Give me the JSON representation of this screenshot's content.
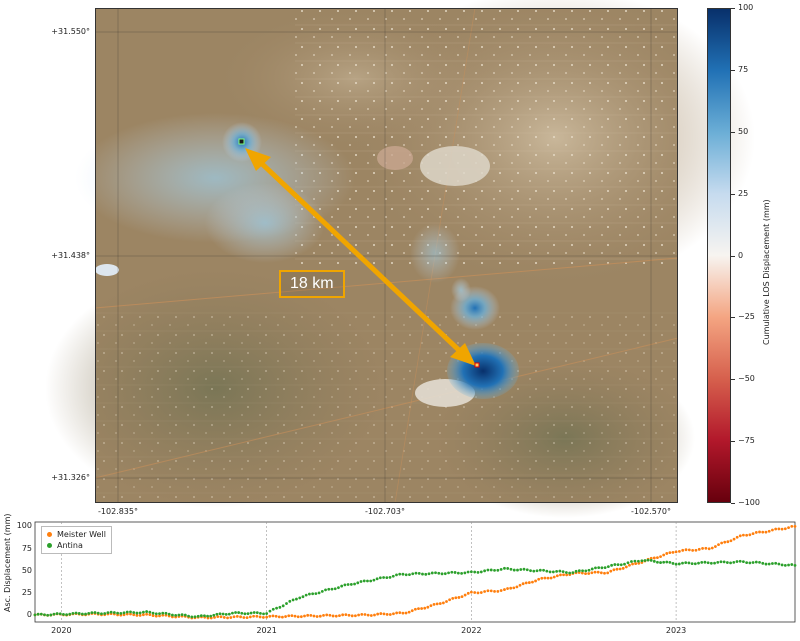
{
  "map": {
    "lat_labels": [
      "+31.550°",
      "+31.438°",
      "+31.326°"
    ],
    "lon_labels": [
      "-102.835°",
      "-102.703°",
      "-102.570°"
    ],
    "distance_label": "18 km",
    "arrow_color": "#f0a500"
  },
  "colorbar": {
    "label": "Cumulative LOS Displacement (mm)",
    "ticks": [
      "100",
      "75",
      "50",
      "25",
      "0",
      "−25",
      "−50",
      "−75",
      "−100"
    ],
    "colors": [
      "#08306b",
      "#2171b5",
      "#6baed6",
      "#c6dbef",
      "#f7f4f0",
      "#f4a582",
      "#d6604d",
      "#b2182b",
      "#67000d"
    ]
  },
  "chart_data": {
    "type": "scatter",
    "title": "",
    "xlabel": "",
    "ylabel": "Asc. Displacement (mm)",
    "ylim": [
      -8,
      105
    ],
    "y_ticks": [
      "100",
      "75",
      "50",
      "25",
      "0"
    ],
    "x_ticks": [
      "2020",
      "2021",
      "2022",
      "2023"
    ],
    "xlim": [
      "2019-11-15",
      "2023-08-01"
    ],
    "grid": true,
    "legend_placement": "top-left",
    "series": [
      {
        "name": "Meister Well",
        "color": "#ff7f0e",
        "points": [
          [
            "2019-11-15",
            0
          ],
          [
            "2020-03-01",
            1
          ],
          [
            "2020-06-01",
            0
          ],
          [
            "2020-09-01",
            -3
          ],
          [
            "2021-01-01",
            -2
          ],
          [
            "2021-04-01",
            -1
          ],
          [
            "2021-07-01",
            0
          ],
          [
            "2021-09-01",
            2
          ],
          [
            "2021-11-01",
            12
          ],
          [
            "2022-01-01",
            25
          ],
          [
            "2022-03-01",
            28
          ],
          [
            "2022-05-01",
            40
          ],
          [
            "2022-07-01",
            47
          ],
          [
            "2022-09-01",
            48
          ],
          [
            "2022-11-01",
            60
          ],
          [
            "2023-01-01",
            72
          ],
          [
            "2023-03-01",
            75
          ],
          [
            "2023-05-01",
            90
          ],
          [
            "2023-08-01",
            100
          ]
        ]
      },
      {
        "name": "Antina",
        "color": "#2ca02c",
        "points": [
          [
            "2019-11-15",
            0
          ],
          [
            "2020-03-01",
            2
          ],
          [
            "2020-06-01",
            3
          ],
          [
            "2020-09-01",
            -2
          ],
          [
            "2020-11-01",
            2
          ],
          [
            "2021-01-01",
            2
          ],
          [
            "2021-03-01",
            20
          ],
          [
            "2021-06-01",
            35
          ],
          [
            "2021-09-01",
            46
          ],
          [
            "2022-01-01",
            48
          ],
          [
            "2022-03-01",
            52
          ],
          [
            "2022-07-01",
            48
          ],
          [
            "2022-10-01",
            58
          ],
          [
            "2022-11-01",
            62
          ],
          [
            "2023-01-01",
            58
          ],
          [
            "2023-05-01",
            60
          ],
          [
            "2023-08-01",
            56
          ]
        ]
      }
    ]
  }
}
